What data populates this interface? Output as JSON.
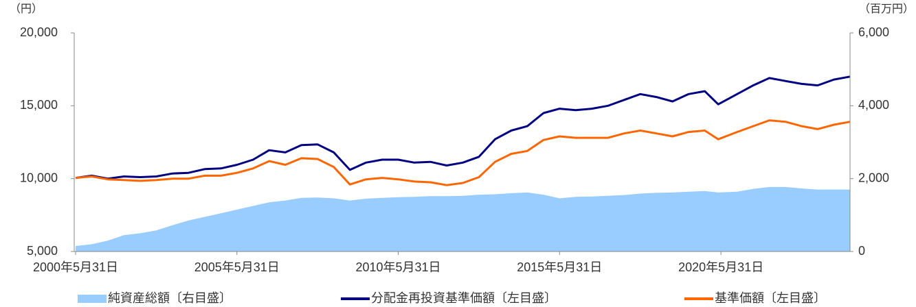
{
  "chart_data": {
    "type": "line",
    "y_label": "（円）",
    "y2_label": "（百万円）",
    "x": [
      "2000-05-31",
      "2000-11-30",
      "2001-05-31",
      "2001-11-30",
      "2002-05-31",
      "2002-11-30",
      "2003-05-31",
      "2003-11-30",
      "2004-05-31",
      "2004-11-30",
      "2005-05-31",
      "2005-11-30",
      "2006-05-31",
      "2006-11-30",
      "2007-05-31",
      "2007-11-30",
      "2008-05-31",
      "2008-11-30",
      "2009-05-31",
      "2009-11-30",
      "2010-05-31",
      "2010-11-30",
      "2011-05-31",
      "2011-11-30",
      "2012-05-31",
      "2012-11-30",
      "2013-05-31",
      "2013-11-30",
      "2014-05-31",
      "2014-11-30",
      "2015-05-31",
      "2015-11-30",
      "2016-05-31",
      "2016-11-30",
      "2017-05-31",
      "2017-11-30",
      "2018-05-31",
      "2018-11-30",
      "2019-05-31",
      "2019-11-30",
      "2020-04-30",
      "2020-11-30",
      "2021-05-31",
      "2021-11-30",
      "2022-05-31",
      "2022-11-30",
      "2023-05-31",
      "2023-11-30",
      "2024-05-31"
    ],
    "xlim": [
      "2000-05-31",
      "2024-05-31"
    ],
    "xticks": [
      {
        "value": "2000-05-31",
        "label": "2000年5月31日"
      },
      {
        "value": "2005-05-31",
        "label": "2005年5月31日"
      },
      {
        "value": "2010-05-31",
        "label": "2010年5月31日"
      },
      {
        "value": "2015-05-31",
        "label": "2015年5月31日"
      },
      {
        "value": "2020-05-31",
        "label": "2020年5月31日"
      }
    ],
    "ylim": [
      5000,
      20000
    ],
    "yticks": [
      {
        "value": 20000,
        "label": "20,000"
      },
      {
        "value": 15000,
        "label": "15,000"
      },
      {
        "value": 10000,
        "label": "10,000"
      },
      {
        "value": 5000,
        "label": "5,000"
      }
    ],
    "y2lim": [
      0,
      6000
    ],
    "y2ticks": [
      {
        "value": 6000,
        "label": "6,000"
      },
      {
        "value": 4000,
        "label": "4,000"
      },
      {
        "value": 2000,
        "label": "2,000"
      },
      0
    ],
    "legend": "bottom",
    "series": [
      {
        "name": "純資産総額〔右目盛〕",
        "type": "area",
        "axis": "y2",
        "color": "#99ccff",
        "values": [
          150,
          200,
          300,
          450,
          500,
          580,
          720,
          850,
          950,
          1050,
          1150,
          1250,
          1350,
          1400,
          1470,
          1480,
          1460,
          1400,
          1450,
          1470,
          1490,
          1500,
          1520,
          1520,
          1530,
          1560,
          1570,
          1600,
          1620,
          1560,
          1460,
          1500,
          1510,
          1530,
          1550,
          1590,
          1610,
          1620,
          1640,
          1660,
          1620,
          1640,
          1720,
          1770,
          1770,
          1730,
          1700,
          1700,
          1700
        ]
      },
      {
        "name": "分配金再投資基準価額〔左目盛〕",
        "type": "line",
        "color": "#000080",
        "values": [
          10050,
          10200,
          10000,
          10150,
          10100,
          10150,
          10350,
          10400,
          10650,
          10700,
          10950,
          11300,
          11950,
          11800,
          12300,
          12350,
          11800,
          10600,
          11100,
          11300,
          11300,
          11100,
          11150,
          10900,
          11100,
          11500,
          12700,
          13300,
          13600,
          14500,
          14800,
          14700,
          14800,
          15000,
          15400,
          15800,
          15600,
          15300,
          15800,
          16000,
          15100,
          15800,
          16400,
          16900,
          16700,
          16500,
          16400,
          16800,
          17000
        ]
      },
      {
        "name": "基準価額〔左目盛〕",
        "type": "line",
        "color": "#ff6600",
        "values": [
          10050,
          10150,
          9950,
          9900,
          9850,
          9900,
          10000,
          10000,
          10200,
          10200,
          10400,
          10700,
          11200,
          10950,
          11400,
          11350,
          10800,
          9600,
          9950,
          10050,
          9950,
          9800,
          9750,
          9550,
          9700,
          10100,
          11150,
          11700,
          11900,
          12650,
          12900,
          12800,
          12800,
          12800,
          13100,
          13300,
          13100,
          12900,
          13200,
          13300,
          12700,
          13200,
          13600,
          14000,
          13900,
          13600,
          13400,
          13700,
          13900
        ]
      }
    ]
  }
}
